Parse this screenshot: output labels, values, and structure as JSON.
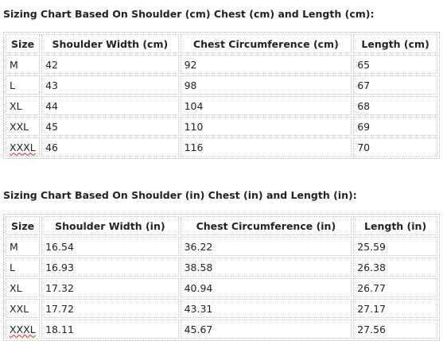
{
  "sections": [
    {
      "title": "Sizing Chart Based On Shoulder (cm) Chest (cm) and Length (cm):",
      "headers": [
        "Size",
        "Shoulder Width (cm)",
        "Chest Circumference (cm)",
        "Length (cm)"
      ],
      "rows": [
        [
          "M",
          "42",
          "92",
          "65"
        ],
        [
          "L",
          "43",
          "98",
          "67"
        ],
        [
          "XL",
          "44",
          "104",
          "68"
        ],
        [
          "XXL",
          "45",
          "110",
          "69"
        ],
        [
          "XXXL",
          "46",
          "116",
          "70"
        ]
      ]
    },
    {
      "title": "Sizing Chart Based On Shoulder (in) Chest (in) and Length (in):",
      "headers": [
        "Size",
        "Shoulder Width (in)",
        "Chest Circumference (in)",
        "Length (in)"
      ],
      "rows": [
        [
          "M",
          "16.54",
          "36.22",
          "25.59"
        ],
        [
          "L",
          "16.93",
          "38.58",
          "26.38"
        ],
        [
          "XL",
          "17.32",
          "40.94",
          "26.77"
        ],
        [
          "XXL",
          "17.72",
          "43.31",
          "27.17"
        ],
        [
          "XXXL",
          "18.11",
          "45.67",
          "27.56"
        ]
      ]
    }
  ],
  "colors": {
    "text": "#222222",
    "cell_border": "#c2c2c2",
    "spellcheck_underline": "#e02020"
  }
}
